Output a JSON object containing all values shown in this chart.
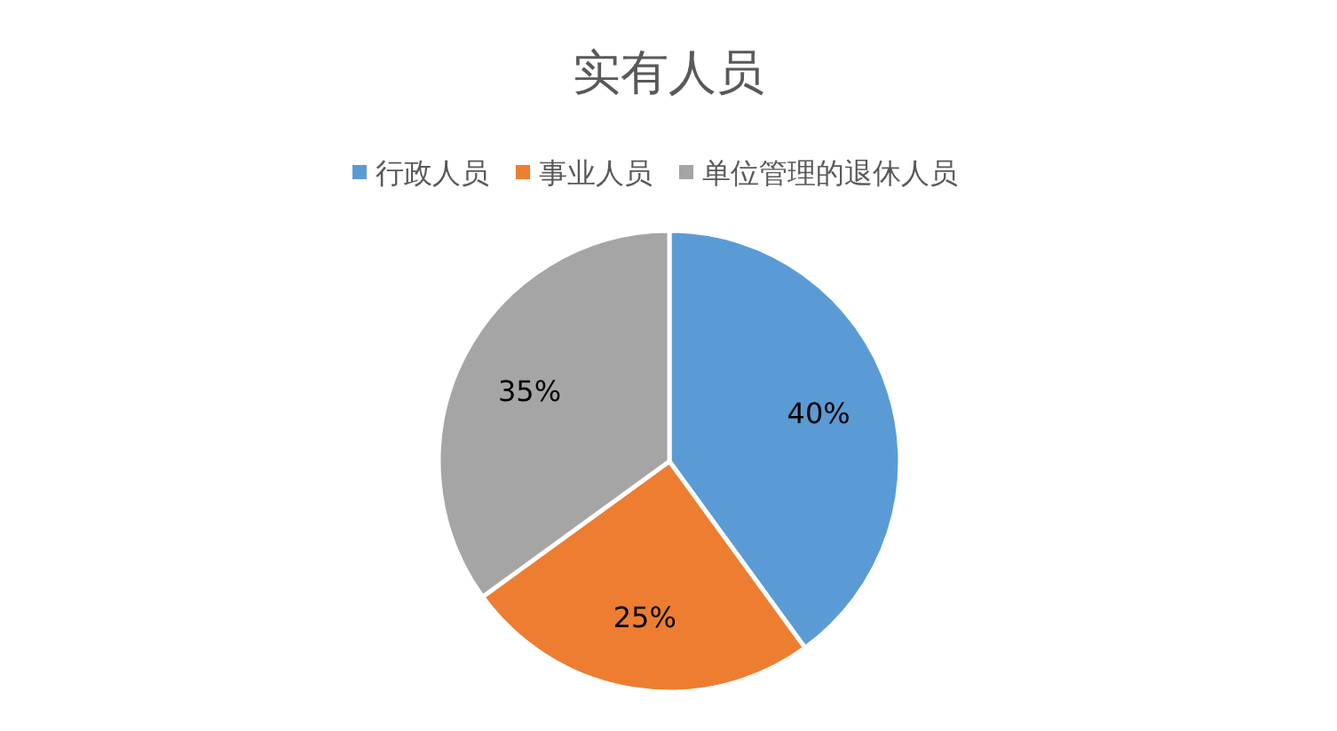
{
  "chart_data": {
    "type": "pie",
    "title": "实有人员",
    "categories": [
      "行政人员",
      "事业人员",
      "单位管理的退休人员"
    ],
    "values": [
      40,
      25,
      35
    ],
    "colors": [
      "#5b9bd5",
      "#ed7d31",
      "#a5a5a5"
    ],
    "value_labels": [
      "40%",
      "25%",
      "35%"
    ],
    "legend": "top"
  }
}
